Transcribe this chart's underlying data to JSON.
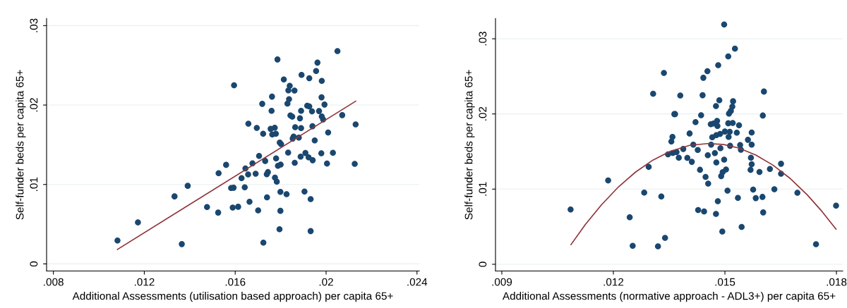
{
  "chart_data": [
    {
      "type": "scatter",
      "xlabel": "Additional Assessments (utilisation based approach) per capita 65+",
      "ylabel": "Self-funder beds per capita 65+",
      "xlim": [
        0.0077,
        0.0241
      ],
      "ylim": [
        -0.0009,
        0.0309
      ],
      "xticks": [
        {
          "value": 0.008,
          "label": ".008"
        },
        {
          "value": 0.012,
          "label": ".012"
        },
        {
          "value": 0.016,
          "label": ".016"
        },
        {
          "value": 0.02,
          "label": ".02"
        },
        {
          "value": 0.024,
          "label": ".024"
        }
      ],
      "yticks": [
        0,
        {
          "value": 0.01,
          "label": ".01"
        },
        {
          "value": 0.02,
          "label": ".02"
        },
        {
          "value": 0.03,
          "label": ".03"
        }
      ],
      "grid": "y",
      "series": [
        {
          "marker": "circle",
          "color": "#1a476f",
          "x": [
            0.01082,
            0.01172,
            0.01365,
            0.01333,
            0.01391,
            0.01476,
            0.01525,
            0.01527,
            0.0156,
            0.01582,
            0.01593,
            0.01589,
            0.01613,
            0.01595,
            0.01642,
            0.01628,
            0.01645,
            0.01657,
            0.01658,
            0.01663,
            0.01676,
            0.0169,
            0.01695,
            0.01701,
            0.01705,
            0.01719,
            0.01723,
            0.01724,
            0.01732,
            0.01739,
            0.01744,
            0.0174,
            0.01756,
            0.01763,
            0.01774,
            0.01779,
            0.0176,
            0.01762,
            0.01775,
            0.01783,
            0.0178,
            0.01786,
            0.01788,
            0.01795,
            0.01796,
            0.01802,
            0.018,
            0.01799,
            0.01799,
            0.01814,
            0.01826,
            0.0183,
            0.01833,
            0.01834,
            0.01837,
            0.0184,
            0.01843,
            0.01851,
            0.01853,
            0.01857,
            0.01861,
            0.01862,
            0.01864,
            0.0188,
            0.01885,
            0.01888,
            0.0189,
            0.0189,
            0.01892,
            0.01905,
            0.01909,
            0.01917,
            0.01923,
            0.01926,
            0.01926,
            0.01932,
            0.01932,
            0.01938,
            0.0194,
            0.01941,
            0.0195,
            0.01956,
            0.01962,
            0.01969,
            0.0198,
            0.01979,
            0.01981,
            0.01981,
            0.01987,
            0.01993,
            0.02004,
            0.02009,
            0.0203,
            0.0205,
            0.02071,
            0.02126,
            0.0213
          ],
          "values": [
            0.00294,
            0.00522,
            0.00249,
            0.0085,
            0.00983,
            0.00716,
            0.00646,
            0.01141,
            0.01247,
            0.00956,
            0.00959,
            0.0071,
            0.00719,
            0.02249,
            0.00965,
            0.0108,
            0.01202,
            0.01126,
            0.01766,
            0.00783,
            0.01266,
            0.01135,
            0.01712,
            0.00674,
            0.0136,
            0.02015,
            0.01639,
            0.00267,
            0.01296,
            0.01129,
            0.01156,
            0.00838,
            0.017,
            0.0163,
            0.01715,
            0.01639,
            0.01927,
            0.02106,
            0.01087,
            0.01035,
            0.01329,
            0.02574,
            0.01235,
            0.00437,
            0.01527,
            0.01508,
            0.0125,
            0.00668,
            0.00907,
            0.02322,
            0.00877,
            0.02018,
            0.01402,
            0.02185,
            0.02073,
            0.02243,
            0.0187,
            0.01854,
            0.01578,
            0.01602,
            0.02182,
            0.01272,
            0.01721,
            0.0159,
            0.01833,
            0.01351,
            0.01927,
            0.01709,
            0.02379,
            0.00911,
            0.01396,
            0.01991,
            0.01341,
            0.01982,
            0.02337,
            0.00413,
            0.00816,
            0.01921,
            0.01733,
            0.01305,
            0.01554,
            0.02428,
            0.02534,
            0.01924,
            0.02097,
            0.01393,
            0.01857,
            0.02304,
            0.01818,
            0.02006,
            0.01263,
            0.01654,
            0.01399,
            0.0268,
            0.01873,
            0.0126,
            0.01757
          ]
        },
        {
          "type": "line",
          "color": "#90353b",
          "x": [
            0.010818,
            0.021303
          ],
          "values": [
            0.00182,
            0.02049
          ]
        }
      ]
    },
    {
      "type": "scatter",
      "xlabel": "Additional Assessments (normative approach - ADL3+) per capita 65+",
      "ylabel": "Self-funder beds per capita 65+",
      "xlim": [
        0.00883,
        0.01817
      ],
      "ylim": [
        -0.0009,
        0.0327
      ],
      "xticks": [
        {
          "value": 0.009,
          "label": ".009"
        },
        {
          "value": 0.012,
          "label": ".012"
        },
        {
          "value": 0.015,
          "label": ".015"
        },
        {
          "value": 0.018,
          "label": ".018"
        }
      ],
      "yticks": [
        0,
        {
          "value": 0.01,
          "label": ".01"
        },
        {
          "value": 0.02,
          "label": ".02"
        },
        {
          "value": 0.03,
          "label": ".03"
        }
      ],
      "grid": "y",
      "series": [
        {
          "marker": "circle",
          "color": "#1a476f",
          "x": [
            0.01085,
            0.01186,
            0.01244,
            0.01252,
            0.01283,
            0.01295,
            0.01307,
            0.0132,
            0.01329,
            0.01336,
            0.01339,
            0.01347,
            0.01356,
            0.01359,
            0.0136,
            0.01364,
            0.01366,
            0.0137,
            0.01376,
            0.0138,
            0.01388,
            0.01399,
            0.01405,
            0.01411,
            0.01415,
            0.01421,
            0.01427,
            0.01428,
            0.01433,
            0.01436,
            0.0144,
            0.01442,
            0.01444,
            0.01448,
            0.01453,
            0.01454,
            0.01455,
            0.01462,
            0.01463,
            0.01466,
            0.01469,
            0.01473,
            0.01476,
            0.01476,
            0.01477,
            0.01477,
            0.01479,
            0.0148,
            0.01481,
            0.01482,
            0.01485,
            0.01487,
            0.01488,
            0.0149,
            0.01493,
            0.01494,
            0.01498,
            0.01498,
            0.015,
            0.01503,
            0.01507,
            0.01509,
            0.01509,
            0.0151,
            0.01511,
            0.01513,
            0.01514,
            0.01516,
            0.0152,
            0.01521,
            0.01522,
            0.01527,
            0.01532,
            0.01535,
            0.01538,
            0.01541,
            0.01543,
            0.01545,
            0.01562,
            0.01569,
            0.0157,
            0.01572,
            0.01572,
            0.01572,
            0.01576,
            0.01583,
            0.01593,
            0.01601,
            0.01602,
            0.01603,
            0.01605,
            0.01621,
            0.01633,
            0.01651,
            0.01651,
            0.01695,
            0.01745,
            0.01799
          ],
          "values": [
            0.00728,
            0.01115,
            0.00625,
            0.00245,
            0.00954,
            0.01296,
            0.02269,
            0.00238,
            0.00902,
            0.02546,
            0.00351,
            0.01463,
            0.01634,
            0.01695,
            0.01482,
            0.01998,
            0.01998,
            0.01492,
            0.01418,
            0.02246,
            0.01534,
            0.01415,
            0.0174,
            0.01363,
            0.01592,
            0.01892,
            0.01521,
            0.00722,
            0.01257,
            0.01982,
            0.02249,
            0.02481,
            0.00703,
            0.01163,
            0.02569,
            0.0145,
            0.01073,
            0.01863,
            0.01592,
            0.01689,
            0.01872,
            0.01479,
            0.0067,
            0.02104,
            0.01718,
            0.01354,
            0.01908,
            0.0184,
            0.00838,
            0.02649,
            0.02182,
            0.01734,
            0.01544,
            0.01173,
            0.00435,
            0.01225,
            0.01392,
            0.0319,
            0.01766,
            0.0126,
            0.0098,
            0.01876,
            0.02765,
            0.01695,
            0.02005,
            0.01763,
            0.01576,
            0.0204,
            0.02098,
            0.01879,
            0.02169,
            0.02868,
            0.0175,
            0.00883,
            0.0185,
            0.01586,
            0.01524,
            0.00496,
            0.01656,
            0.01257,
            0.01418,
            0.01592,
            0.01753,
            0.01331,
            0.00993,
            0.0088,
            0.01228,
            0.00896,
            0.01979,
            0.0069,
            0.02298,
            0.01267,
            0.00999,
            0.01337,
            0.01205,
            0.00951,
            0.00267,
            0.0078
          ]
        },
        {
          "type": "line",
          "color": "#90353b",
          "x": [
            0.010859,
            0.011247,
            0.011678,
            0.01214,
            0.012601,
            0.013063,
            0.013525,
            0.014048,
            0.014571,
            0.014971,
            0.015371,
            0.015833,
            0.016295,
            0.016757,
            0.017218,
            0.017618,
            0.017988
          ],
          "values": [
            0.00261,
            0.00529,
            0.0079,
            0.01031,
            0.01228,
            0.01386,
            0.01502,
            0.01582,
            0.01608,
            0.01592,
            0.01547,
            0.01453,
            0.01318,
            0.01141,
            0.00922,
            0.00699,
            0.00467
          ]
        }
      ]
    }
  ]
}
